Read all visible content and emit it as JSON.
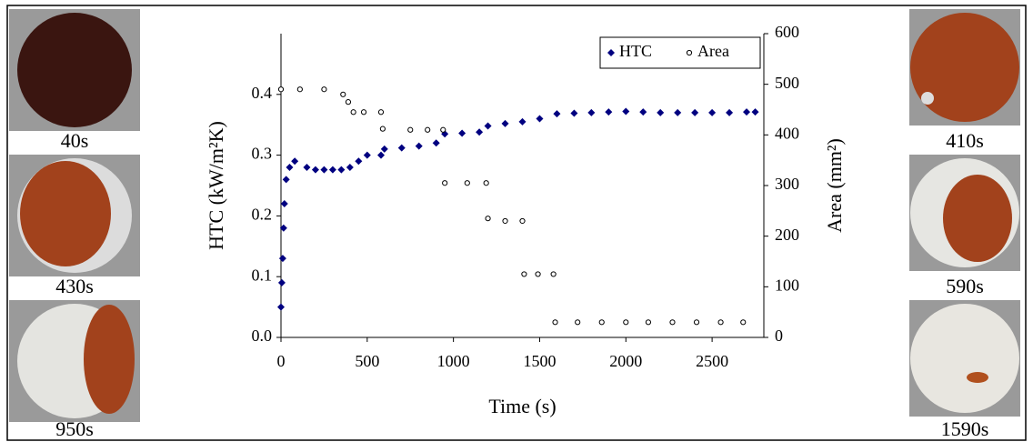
{
  "chart_data": {
    "type": "scatter",
    "xlabel": "Time (s)",
    "ylabel": "HTC (kW/m²K)",
    "y2label": "Area (mm²)",
    "xlim": [
      0,
      2800
    ],
    "xticks": [
      0,
      500,
      1000,
      1500,
      2000,
      2500
    ],
    "ylim": [
      0,
      0.5
    ],
    "yticks": [
      {
        "value": 0,
        "label": "0.0"
      },
      0.1,
      0.2,
      0.3,
      0.4
    ],
    "y2lim": [
      0,
      600
    ],
    "y2ticks": [
      0,
      100,
      200,
      300,
      400,
      500,
      600
    ],
    "legend": "upper right",
    "series": [
      {
        "name": "HTC",
        "color": "#000080",
        "marker": "diamond",
        "x": [
          0,
          5,
          10,
          15,
          20,
          30,
          50,
          80,
          150,
          200,
          250,
          300,
          350,
          400,
          450,
          500,
          580,
          600,
          700,
          800,
          900,
          950,
          1050,
          1150,
          1200,
          1300,
          1400,
          1500,
          1600,
          1700,
          1800,
          1900,
          2000,
          2100,
          2200,
          2300,
          2400,
          2500,
          2600,
          2700,
          2750
        ],
        "values": [
          0.05,
          0.09,
          0.13,
          0.18,
          0.22,
          0.26,
          0.28,
          0.29,
          0.28,
          0.276,
          0.276,
          0.276,
          0.276,
          0.28,
          0.29,
          0.3,
          0.3,
          0.31,
          0.312,
          0.315,
          0.32,
          0.335,
          0.336,
          0.338,
          0.348,
          0.352,
          0.355,
          0.36,
          0.368,
          0.369,
          0.37,
          0.371,
          0.372,
          0.371,
          0.37,
          0.37,
          0.37,
          0.37,
          0.37,
          0.371,
          0.371
        ]
      },
      {
        "name": "Area",
        "color": "#000000",
        "marker": "circle",
        "axis": "y2",
        "x": [
          0,
          110,
          250,
          360,
          390,
          420,
          480,
          580,
          590,
          750,
          850,
          940,
          950,
          1080,
          1190,
          1200,
          1300,
          1400,
          1410,
          1490,
          1580,
          1590,
          1720,
          1860,
          2000,
          2130,
          2270,
          2410,
          2550,
          2680
        ],
        "values": [
          490,
          490,
          490,
          480,
          465,
          445,
          445,
          445,
          412,
          410,
          410,
          410,
          305,
          305,
          305,
          235,
          230,
          230,
          125,
          125,
          125,
          30,
          30,
          30,
          30,
          30,
          30,
          30,
          30,
          30
        ]
      }
    ],
    "photo_captions": [
      "40s",
      "430s",
      "950s",
      "410s",
      "590s",
      "1590s"
    ]
  }
}
